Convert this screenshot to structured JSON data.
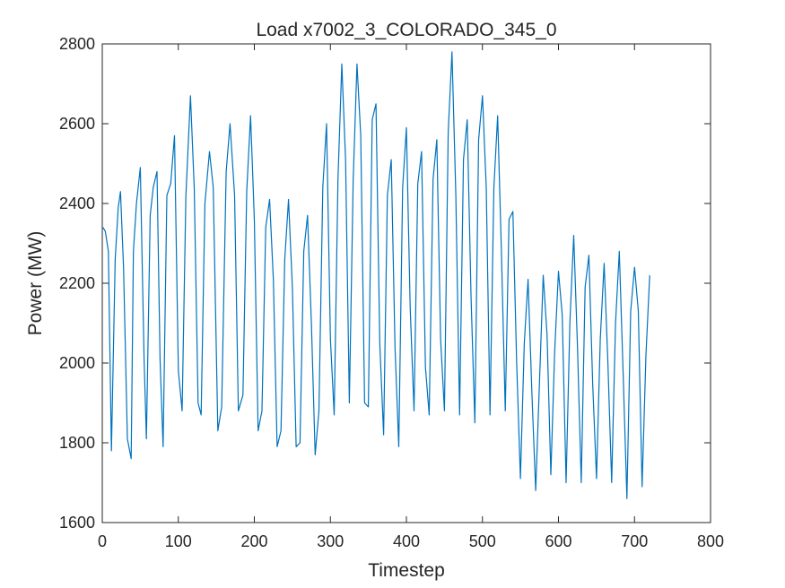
{
  "chart_data": {
    "type": "line",
    "title": "Load x7002_3_COLORADO_345_0",
    "xlabel": "Timestep",
    "ylabel": "Power (MW)",
    "xlim": [
      0,
      800
    ],
    "ylim": [
      1600,
      2800
    ],
    "xticks": [
      0,
      100,
      200,
      300,
      400,
      500,
      600,
      700,
      800
    ],
    "yticks": [
      1600,
      1800,
      2000,
      2200,
      2400,
      2600,
      2800
    ],
    "grid": false,
    "legend": "none",
    "line_color": "#0072BD",
    "series": [
      {
        "x": [
          1,
          4,
          8,
          12,
          17,
          21,
          24,
          28,
          33,
          38,
          41,
          45,
          50,
          55,
          58,
          63,
          67,
          72,
          76,
          80,
          85,
          90,
          95,
          100,
          105,
          110,
          116,
          121,
          126,
          130,
          135,
          141,
          146,
          152,
          157,
          163,
          168,
          174,
          179,
          185,
          190,
          195,
          200,
          205,
          210,
          215,
          220,
          225,
          230,
          235,
          240,
          245,
          250,
          255,
          260,
          265,
          270,
          275,
          280,
          285,
          290,
          295,
          300,
          305,
          310,
          315,
          320,
          325,
          330,
          335,
          340,
          345,
          350,
          355,
          360,
          365,
          370,
          375,
          380,
          385,
          390,
          395,
          400,
          405,
          410,
          415,
          420,
          425,
          430,
          435,
          440,
          445,
          450,
          455,
          460,
          465,
          470,
          475,
          480,
          485,
          490,
          495,
          500,
          505,
          510,
          515,
          520,
          525,
          530,
          535,
          540,
          545,
          550,
          555,
          560,
          565,
          570,
          575,
          580,
          585,
          590,
          595,
          600,
          605,
          610,
          615,
          620,
          625,
          630,
          635,
          640,
          645,
          650,
          655,
          660,
          665,
          670,
          675,
          680,
          685,
          690,
          695,
          700,
          705,
          710,
          715,
          720
        ],
        "y": [
          2340,
          2330,
          2280,
          1780,
          2260,
          2390,
          2430,
          2240,
          1810,
          1760,
          2280,
          2400,
          2490,
          2010,
          1810,
          2370,
          2440,
          2480,
          2010,
          1790,
          2420,
          2450,
          2570,
          1980,
          1880,
          2420,
          2670,
          2440,
          1900,
          1870,
          2400,
          2530,
          2440,
          1830,
          1890,
          2480,
          2600,
          2420,
          1880,
          1920,
          2430,
          2620,
          2360,
          1830,
          1880,
          2340,
          2410,
          2210,
          1790,
          1830,
          2260,
          2410,
          2190,
          1790,
          1800,
          2280,
          2370,
          2100,
          1770,
          1880,
          2440,
          2600,
          2060,
          1870,
          2460,
          2750,
          2510,
          1900,
          2460,
          2750,
          2570,
          1900,
          1890,
          2610,
          2650,
          2050,
          1820,
          2420,
          2510,
          2040,
          1790,
          2440,
          2590,
          2140,
          1880,
          2450,
          2530,
          1990,
          1870,
          2460,
          2560,
          2060,
          1880,
          2580,
          2780,
          2420,
          1870,
          2510,
          2610,
          2170,
          1850,
          2560,
          2670,
          2440,
          1870,
          2440,
          2620,
          2280,
          1880,
          2360,
          2380,
          2000,
          1710,
          2050,
          2210,
          1930,
          1680,
          1950,
          2220,
          2070,
          1720,
          2030,
          2230,
          2120,
          1700,
          2100,
          2320,
          2040,
          1700,
          2190,
          2270,
          1950,
          1710,
          2060,
          2250,
          2000,
          1700,
          2100,
          2280,
          1980,
          1660,
          2130,
          2240,
          2130,
          1690,
          2020,
          2220
        ]
      }
    ]
  }
}
